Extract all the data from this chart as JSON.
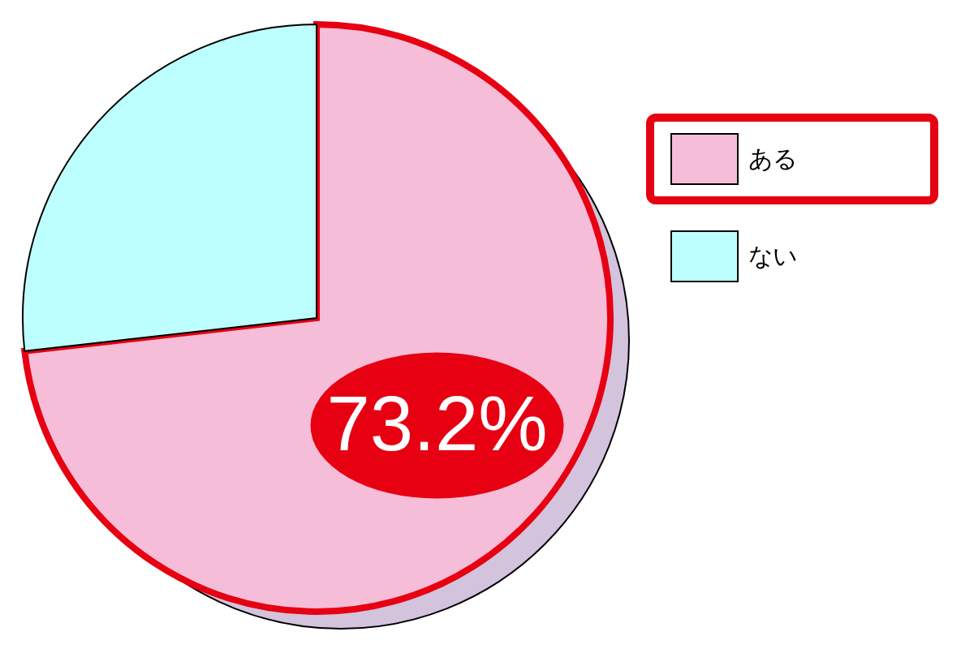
{
  "chart_data": {
    "type": "pie",
    "categories": [
      "ある",
      "ない"
    ],
    "values": [
      73.2,
      26.8
    ],
    "colors": [
      "#f5bdd7",
      "#bdffff"
    ],
    "value_labels": [
      "73.2%",
      null
    ],
    "legend": "right"
  }
}
